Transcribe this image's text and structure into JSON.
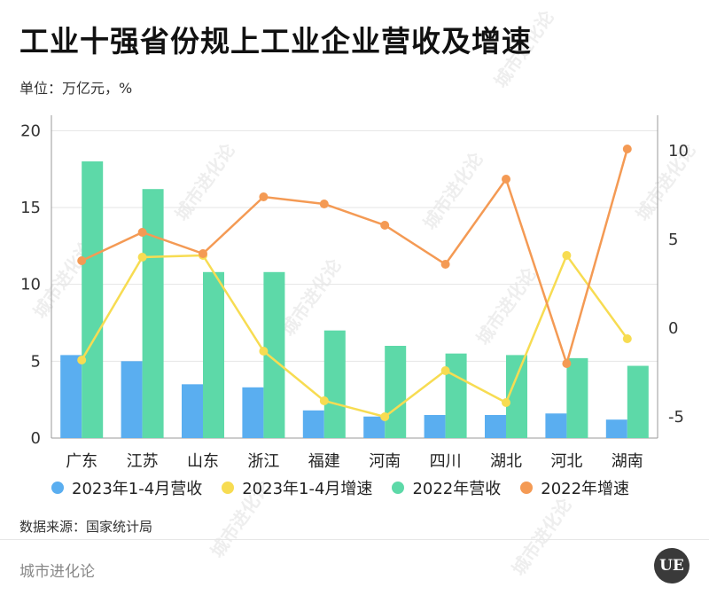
{
  "title": "工业十强省份规上工业企业营收及增速",
  "unit": "单位：万亿元，%",
  "source": "数据来源：国家统计局",
  "footer_brand": "城市进化论",
  "logo_text": "UE",
  "watermark": "城市进化论",
  "colors": {
    "rev_2023": "#5aaef0",
    "growth_2023": "#f7dc52",
    "rev_2022": "#5dd9a8",
    "growth_2022": "#f49a54"
  },
  "chart_data": {
    "type": "bar",
    "categories": [
      "广东",
      "江苏",
      "山东",
      "浙江",
      "福建",
      "河南",
      "四川",
      "湖北",
      "河北",
      "湖南"
    ],
    "left_axis": {
      "ylim": [
        0,
        21
      ],
      "ticks": [
        "0",
        "5",
        "10",
        "15",
        "20"
      ]
    },
    "right_axis": {
      "ylim": [
        -6.2,
        12
      ],
      "ticks": [
        "-5",
        "0",
        "5",
        "10"
      ]
    },
    "grid": true,
    "legend_position": "bottom",
    "series": [
      {
        "name": "2023年1-4月营收",
        "type": "bar",
        "axis": "left",
        "color": "#5aaef0",
        "values": [
          5.4,
          5.0,
          3.5,
          3.3,
          1.8,
          1.4,
          1.5,
          1.5,
          1.6,
          1.2
        ]
      },
      {
        "name": "2023年1-4月增速",
        "type": "line",
        "axis": "right",
        "color": "#f7dc52",
        "values": [
          -1.8,
          4.0,
          4.1,
          -1.3,
          -4.1,
          -5.0,
          -2.4,
          -4.2,
          4.1,
          -0.6
        ]
      },
      {
        "name": "2022年营收",
        "type": "bar",
        "axis": "left",
        "color": "#5dd9a8",
        "values": [
          18.0,
          16.2,
          10.8,
          10.8,
          7.0,
          6.0,
          5.5,
          5.4,
          5.2,
          4.7
        ]
      },
      {
        "name": "2022年增速",
        "type": "line",
        "axis": "right",
        "color": "#f49a54",
        "values": [
          3.8,
          5.4,
          4.2,
          7.4,
          7.0,
          5.8,
          3.6,
          8.4,
          -2.0,
          10.1
        ]
      }
    ]
  }
}
